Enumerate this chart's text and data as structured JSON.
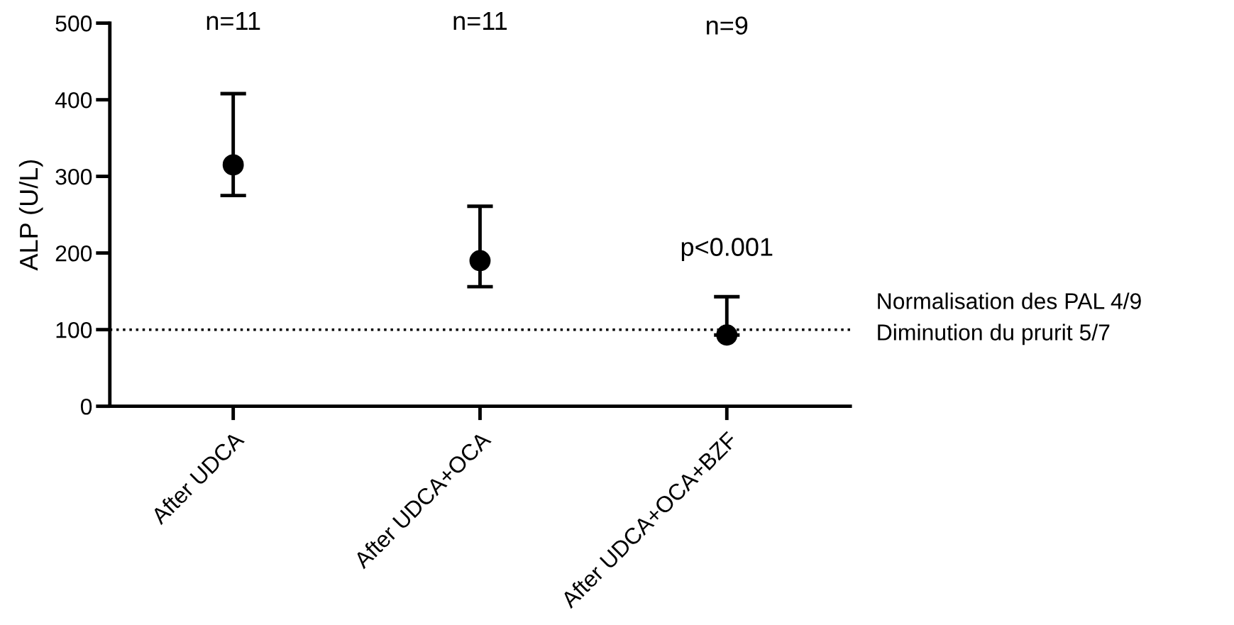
{
  "chart_data": {
    "type": "scatter",
    "ylabel": "ALP (U/L)",
    "categories": [
      "After UDCA",
      "After UDCA+OCA",
      "After UDCA+OCA+BZF"
    ],
    "values": [
      315,
      190,
      93
    ],
    "errors": [
      [
        275,
        408
      ],
      [
        156,
        261
      ],
      [
        93,
        143
      ]
    ],
    "color": "#000000",
    "marker": "circle",
    "ylim": [
      0,
      500
    ],
    "yticks": [
      0,
      100,
      200,
      300,
      400,
      500
    ],
    "grid": false,
    "legend": false,
    "ref_lines": [
      {
        "axis": "y",
        "value": 100,
        "color": "#000000",
        "line_style": "dotted"
      }
    ],
    "annotations": [
      "n=11",
      "n=11",
      "n=9",
      "p<0.001",
      "Normalisation des PAL 4/9",
      "Diminution du prurit 5/7"
    ]
  }
}
